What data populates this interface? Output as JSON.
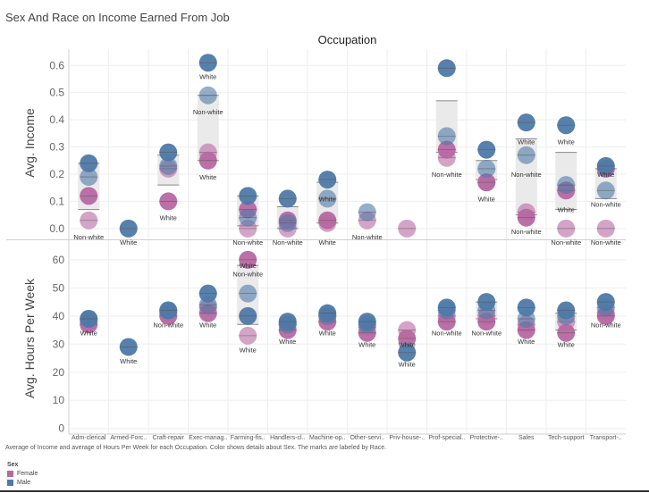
{
  "title": "Sex And Race on Income Earned From Job",
  "chart_data": {
    "type": "scatter",
    "column_header": "Occupation",
    "categories": [
      "Adm-clerical",
      "Armed-Forc..",
      "Craft-repair",
      "Exec-manag..",
      "Farming-fis..",
      "Handlers-cl..",
      "Machine-op..",
      "Other-servi..",
      "Priv-house-..",
      "Prof-special..",
      "Protective-..",
      "Sales",
      "Tech-support",
      "Transport-.."
    ],
    "panels": [
      {
        "ylabel": "Avg. Income",
        "ylim": [
          -0.03,
          0.66
        ],
        "ticks": [
          0.0,
          0.1,
          0.2,
          0.3,
          0.4,
          0.5,
          0.6
        ],
        "tick_labels": [
          "0.0",
          "0.1",
          "0.2",
          "0.3",
          "0.4",
          "0.5",
          "0.6"
        ],
        "series": [
          {
            "name": "Female",
            "race": "Non-white",
            "values": [
              0.03,
              null,
              0.22,
              0.28,
              0.0,
              0.0,
              0.02,
              0.03,
              0.0,
              0.26,
              0.17,
              0.06,
              0.0,
              0.0
            ]
          },
          {
            "name": "Female",
            "race": "White",
            "values": [
              0.12,
              null,
              0.1,
              0.25,
              0.07,
              0.03,
              0.03,
              null,
              null,
              0.29,
              0.17,
              0.04,
              0.14,
              0.22
            ]
          },
          {
            "name": "Male",
            "race": "Non-white",
            "values": [
              0.19,
              null,
              0.23,
              0.49,
              0.04,
              0.02,
              0.11,
              0.06,
              null,
              0.34,
              0.22,
              0.27,
              0.16,
              0.14
            ]
          },
          {
            "name": "Male",
            "race": "White",
            "values": [
              0.24,
              0.0,
              0.28,
              0.61,
              0.12,
              0.11,
              0.18,
              null,
              null,
              0.59,
              0.29,
              0.39,
              0.38,
              0.23
            ]
          }
        ],
        "labels": [
          {
            "cat": 0,
            "text": "Non-white",
            "y": -0.03
          },
          {
            "cat": 1,
            "text": "White",
            "y": -0.05
          },
          {
            "cat": 2,
            "text": "White",
            "y": 0.04
          },
          {
            "cat": 3,
            "text": "White",
            "y": 0.19
          },
          {
            "cat": 3,
            "text": "Non-white",
            "y": 0.43
          },
          {
            "cat": 3,
            "text": "White",
            "y": 0.56
          },
          {
            "cat": 4,
            "text": "Non-white",
            "y": -0.05
          },
          {
            "cat": 5,
            "text": "Non-white",
            "y": -0.05
          },
          {
            "cat": 6,
            "text": "White",
            "y": -0.05
          },
          {
            "cat": 6,
            "text": "White",
            "y": 0.11
          },
          {
            "cat": 7,
            "text": "Non-white",
            "y": -0.03
          },
          {
            "cat": 9,
            "text": "Non-white",
            "y": 0.2
          },
          {
            "cat": 10,
            "text": "White",
            "y": 0.11
          },
          {
            "cat": 11,
            "text": "White",
            "y": 0.32
          },
          {
            "cat": 11,
            "text": "Non-white",
            "y": 0.2
          },
          {
            "cat": 11,
            "text": "Non-white",
            "y": -0.01
          },
          {
            "cat": 12,
            "text": "White",
            "y": 0.32
          },
          {
            "cat": 12,
            "text": "White",
            "y": 0.07
          },
          {
            "cat": 12,
            "text": "Non-white",
            "y": -0.05
          },
          {
            "cat": 13,
            "text": "White",
            "y": 0.2
          },
          {
            "cat": 13,
            "text": "Non-white",
            "y": 0.09
          },
          {
            "cat": 13,
            "text": "Non-white",
            "y": -0.05
          }
        ],
        "bands": [
          {
            "cat": 0,
            "low": 0.07,
            "high": 0.24
          },
          {
            "cat": 2,
            "low": 0.16,
            "high": 0.27
          },
          {
            "cat": 3,
            "low": 0.25,
            "high": 0.49
          },
          {
            "cat": 4,
            "low": 0.01,
            "high": 0.12
          },
          {
            "cat": 5,
            "low": 0.0,
            "high": 0.08
          },
          {
            "cat": 6,
            "low": 0.02,
            "high": 0.17
          },
          {
            "cat": 9,
            "low": 0.28,
            "high": 0.47
          },
          {
            "cat": 10,
            "low": 0.18,
            "high": 0.25
          },
          {
            "cat": 11,
            "low": 0.05,
            "high": 0.33
          },
          {
            "cat": 12,
            "low": 0.07,
            "high": 0.28
          },
          {
            "cat": 13,
            "low": 0.11,
            "high": 0.22
          }
        ]
      },
      {
        "ylabel": "Avg. Hours Per Week",
        "ylim": [
          -2,
          66
        ],
        "ticks": [
          0,
          10,
          20,
          30,
          40,
          50,
          60
        ],
        "tick_labels": [
          "0",
          "10",
          "20",
          "30",
          "40",
          "50",
          "60"
        ],
        "series": [
          {
            "name": "Female",
            "race": "Non-white",
            "values": [
              38,
              null,
              41,
              43,
              33,
              37,
              40,
              36,
              35,
              40,
              40,
              37,
              38,
              41
            ]
          },
          {
            "name": "Female",
            "race": "White",
            "values": [
              37,
              null,
              40,
              41,
              60,
              35,
              38,
              34,
              32,
              38,
              38,
              35,
              34,
              40
            ]
          },
          {
            "name": "Male",
            "race": "Non-white",
            "values": [
              39,
              null,
              42,
              44,
              48,
              37,
              40,
              37,
              null,
              42,
              42,
              39,
              40,
              43
            ]
          },
          {
            "name": "Male",
            "race": "White",
            "values": [
              39,
              29,
              42,
              48,
              40,
              38,
              41,
              38,
              27,
              43,
              45,
              43,
              42,
              45
            ]
          }
        ],
        "labels": [
          {
            "cat": 0,
            "text": "White",
            "y": 34
          },
          {
            "cat": 1,
            "text": "White",
            "y": 24
          },
          {
            "cat": 2,
            "text": "Non-white",
            "y": 37
          },
          {
            "cat": 3,
            "text": "White",
            "y": 37
          },
          {
            "cat": 4,
            "text": "Non-white",
            "y": 55
          },
          {
            "cat": 4,
            "text": "White",
            "y": 58
          },
          {
            "cat": 4,
            "text": "White",
            "y": 28
          },
          {
            "cat": 5,
            "text": "White",
            "y": 31
          },
          {
            "cat": 6,
            "text": "White",
            "y": 34
          },
          {
            "cat": 7,
            "text": "White",
            "y": 30
          },
          {
            "cat": 8,
            "text": "White",
            "y": 30
          },
          {
            "cat": 8,
            "text": "White",
            "y": 23
          },
          {
            "cat": 9,
            "text": "Non-white",
            "y": 34
          },
          {
            "cat": 10,
            "text": "Non-white",
            "y": 34
          },
          {
            "cat": 11,
            "text": "White",
            "y": 31
          },
          {
            "cat": 12,
            "text": "White",
            "y": 30
          },
          {
            "cat": 13,
            "text": "Non-white",
            "y": 37
          }
        ],
        "bands": [
          {
            "cat": 4,
            "low": 37,
            "high": 58
          },
          {
            "cat": 10,
            "low": 39,
            "high": 45
          },
          {
            "cat": 12,
            "low": 35,
            "high": 41
          }
        ]
      }
    ],
    "colors": {
      "Female": "#b768a2",
      "Male": "#4e79a7",
      "band": "#dcdcdc",
      "grid": "#eeeeee",
      "axis": "#999999"
    }
  },
  "footnote": "Average of Income and average of Hours Per Week for each Occupation.  Color shows details about Sex.  The marks are labeled by Race.",
  "legend": {
    "title": "Sex",
    "items": [
      {
        "label": "Female",
        "color": "#b768a2"
      },
      {
        "label": "Male",
        "color": "#4e79a7"
      }
    ]
  }
}
